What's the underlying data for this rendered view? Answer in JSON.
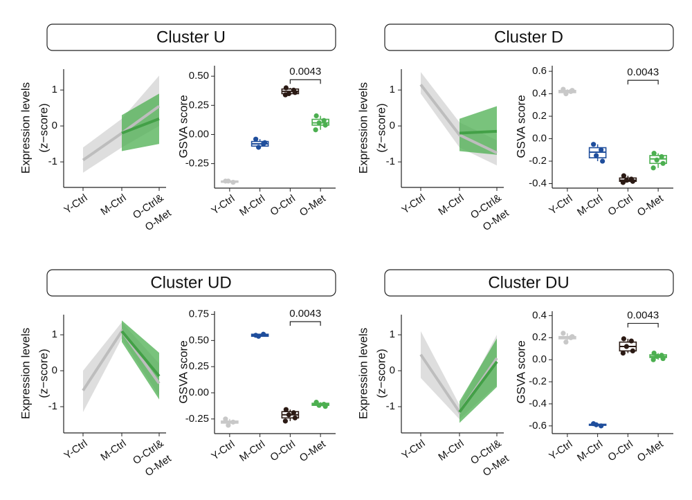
{
  "chart_data": [
    {
      "type": "line",
      "title": "Cluster U",
      "ylabel": [
        "Expression levels",
        "(z−score)"
      ],
      "categories": [
        "Y-Ctrl",
        "M-Ctrl",
        "O-Ctrl&"
      ],
      "category_suffix": "O-Met",
      "category_suffix_color": "#4caf50",
      "ylim": [
        -1.71,
        1.58
      ],
      "yticks": [
        -1,
        0,
        1
      ],
      "series": [
        {
          "color": "#c8c8c8",
          "values": [
            -0.95,
            -0.2,
            0.55
          ],
          "lower": [
            -1.3,
            -0.6,
            0.0
          ],
          "upper": [
            -0.6,
            0.2,
            1.4
          ]
        },
        {
          "color": "#4caf50",
          "values": [
            null,
            -0.2,
            0.2
          ],
          "lower": [
            null,
            -0.7,
            -0.5
          ],
          "upper": [
            null,
            0.3,
            0.9
          ]
        }
      ]
    },
    {
      "type": "box",
      "ylabel": "GSVA score",
      "categories": [
        "Y-Ctrl",
        "M-Ctrl",
        "O-Ctrl",
        "O-Met"
      ],
      "colors": [
        "#c8c8c8",
        "#1f4e9c",
        "#2b1a14",
        "#4caf50"
      ],
      "ylim": [
        -0.46,
        0.59
      ],
      "yticks": [
        -0.25,
        {
          "value": 0,
          "label": "0.00"
        },
        0.25,
        {
          "value": 0.5,
          "label": "0.50"
        }
      ],
      "annotation": {
        "text": "0.0043",
        "y": 0.47
      },
      "boxes": [
        {
          "min": -0.41,
          "q1": -0.41,
          "median": -0.4,
          "q3": -0.4,
          "max": -0.39,
          "points": [
            -0.4,
            -0.41,
            -0.4
          ]
        },
        {
          "min": -0.11,
          "q1": -0.1,
          "median": -0.08,
          "q3": -0.06,
          "max": -0.04,
          "points": [
            -0.04,
            -0.08,
            -0.11,
            -0.07
          ]
        },
        {
          "min": 0.34,
          "q1": 0.35,
          "median": 0.37,
          "q3": 0.39,
          "max": 0.4,
          "points": [
            0.4,
            0.38,
            0.35,
            0.36,
            0.34
          ]
        },
        {
          "min": 0.04,
          "q1": 0.08,
          "median": 0.1,
          "q3": 0.13,
          "max": 0.16,
          "points": [
            0.16,
            0.12,
            0.1,
            0.08,
            0.04
          ]
        }
      ]
    },
    {
      "type": "line",
      "title": "Cluster D",
      "ylabel": [
        "Expression levels",
        "(z−score)"
      ],
      "categories": [
        "Y-Ctrl",
        "M-Ctrl",
        "O-Ctrl&"
      ],
      "category_suffix": "O-Met",
      "category_suffix_color": "#4caf50",
      "ylim": [
        -1.71,
        1.58
      ],
      "yticks": [
        -1,
        0,
        1
      ],
      "series": [
        {
          "color": "#c8c8c8",
          "values": [
            1.15,
            -0.25,
            -0.75
          ],
          "lower": [
            0.9,
            -0.6,
            -1.1
          ],
          "upper": [
            1.5,
            0.1,
            -0.4
          ]
        },
        {
          "color": "#4caf50",
          "values": [
            null,
            -0.2,
            -0.15
          ],
          "lower": [
            null,
            -0.7,
            -0.8
          ],
          "upper": [
            null,
            0.2,
            0.55
          ]
        }
      ]
    },
    {
      "type": "box",
      "ylabel": "GSVA score",
      "categories": [
        "Y-Ctrl",
        "M-Ctrl",
        "O-Ctrl",
        "O-Met"
      ],
      "colors": [
        "#c8c8c8",
        "#1f4e9c",
        "#2b1a14",
        "#4caf50"
      ],
      "ylim": [
        -0.44,
        0.65
      ],
      "yticks": [
        -0.4,
        -0.2,
        {
          "value": 0,
          "label": "0.0"
        },
        0.2,
        0.4,
        0.6
      ],
      "annotation": {
        "text": "0.0043",
        "y": 0.52
      },
      "boxes": [
        {
          "min": 0.4,
          "q1": 0.41,
          "median": 0.42,
          "q3": 0.43,
          "max": 0.44,
          "points": [
            0.44,
            0.42,
            0.4,
            0.43
          ]
        },
        {
          "min": -0.2,
          "q1": -0.17,
          "median": -0.12,
          "q3": -0.08,
          "max": -0.05,
          "points": [
            -0.05,
            -0.1,
            -0.15,
            -0.2
          ]
        },
        {
          "min": -0.39,
          "q1": -0.38,
          "median": -0.37,
          "q3": -0.35,
          "max": -0.33,
          "points": [
            -0.33,
            -0.36,
            -0.37,
            -0.38,
            -0.39
          ]
        },
        {
          "min": -0.26,
          "q1": -0.22,
          "median": -0.18,
          "q3": -0.15,
          "max": -0.13,
          "points": [
            -0.13,
            -0.16,
            -0.19,
            -0.22,
            -0.26
          ]
        }
      ]
    },
    {
      "type": "line",
      "title": "Cluster UD",
      "ylabel": [
        "Expression levels",
        "(z−score)"
      ],
      "categories": [
        "Y-Ctrl",
        "M-Ctrl",
        "O-Ctrl&"
      ],
      "category_suffix": "O-Met",
      "category_suffix_color": "#4caf50",
      "ylim": [
        -1.73,
        1.56
      ],
      "yticks": [
        -1,
        0,
        1
      ],
      "series": [
        {
          "color": "#c8c8c8",
          "values": [
            -0.55,
            1.1,
            -0.35
          ],
          "lower": [
            -1.15,
            0.9,
            -0.7
          ],
          "upper": [
            0.0,
            1.35,
            0.2
          ]
        },
        {
          "color": "#4caf50",
          "values": [
            null,
            1.1,
            -0.15
          ],
          "lower": [
            null,
            0.8,
            -0.8
          ],
          "upper": [
            null,
            1.4,
            0.5
          ]
        }
      ]
    },
    {
      "type": "box",
      "ylabel": "GSVA score",
      "categories": [
        "Y-Ctrl",
        "M-Ctrl",
        "O-Ctrl",
        "O-Met"
      ],
      "colors": [
        "#c8c8c8",
        "#1f4e9c",
        "#2b1a14",
        "#4caf50"
      ],
      "ylim": [
        -0.39,
        0.78
      ],
      "yticks": [
        -0.25,
        {
          "value": 0,
          "label": "0.00"
        },
        0.25,
        {
          "value": 0.5,
          "label": "0.50"
        },
        0.75
      ],
      "annotation": {
        "text": "0.0043",
        "y": 0.68
      },
      "boxes": [
        {
          "min": -0.31,
          "q1": -0.29,
          "median": -0.28,
          "q3": -0.27,
          "max": -0.25,
          "points": [
            -0.25,
            -0.28,
            -0.31
          ]
        },
        {
          "min": 0.54,
          "q1": 0.54,
          "median": 0.55,
          "q3": 0.56,
          "max": 0.56,
          "points": [
            0.55,
            0.56,
            0.54
          ]
        },
        {
          "min": -0.27,
          "q1": -0.24,
          "median": -0.21,
          "q3": -0.18,
          "max": -0.16,
          "points": [
            -0.16,
            -0.19,
            -0.21,
            -0.24,
            -0.27
          ]
        },
        {
          "min": -0.13,
          "q1": -0.12,
          "median": -0.11,
          "q3": -0.1,
          "max": -0.09,
          "points": [
            -0.09,
            -0.11,
            -0.12,
            -0.13
          ]
        }
      ]
    },
    {
      "type": "line",
      "title": "Cluster DU",
      "ylabel": [
        "Expression levels",
        "(z−score)"
      ],
      "categories": [
        "Y-Ctrl",
        "M-Ctrl",
        "O-Ctrl&"
      ],
      "category_suffix": "O-Met",
      "category_suffix_color": "#4caf50",
      "ylim": [
        -1.73,
        1.56
      ],
      "yticks": [
        -1,
        0,
        1
      ],
      "series": [
        {
          "color": "#c8c8c8",
          "values": [
            0.45,
            -1.15,
            0.35
          ],
          "lower": [
            -0.2,
            -1.35,
            -0.4
          ],
          "upper": [
            1.1,
            -0.95,
            1.0
          ]
        },
        {
          "color": "#4caf50",
          "values": [
            null,
            -1.15,
            0.25
          ],
          "lower": [
            null,
            -1.45,
            -0.45
          ],
          "upper": [
            null,
            -0.85,
            0.9
          ]
        }
      ]
    },
    {
      "type": "box",
      "ylabel": "GSVA score",
      "categories": [
        "Y-Ctrl",
        "M-Ctrl",
        "O-Ctrl",
        "O-Met"
      ],
      "colors": [
        "#c8c8c8",
        "#1f4e9c",
        "#2b1a14",
        "#4caf50"
      ],
      "ylim": [
        -0.67,
        0.44
      ],
      "yticks": [
        -0.6,
        -0.4,
        -0.2,
        {
          "value": 0,
          "label": "0.0"
        },
        0.2,
        0.4
      ],
      "annotation": {
        "text": "0.0043",
        "y": 0.33
      },
      "boxes": [
        {
          "min": 0.16,
          "q1": 0.19,
          "median": 0.2,
          "q3": 0.21,
          "max": 0.24,
          "points": [
            0.24,
            0.2,
            0.16,
            0.21
          ]
        },
        {
          "min": -0.6,
          "q1": -0.595,
          "median": -0.59,
          "q3": -0.585,
          "max": -0.58,
          "points": [
            -0.58,
            -0.6,
            -0.59
          ]
        },
        {
          "min": 0.06,
          "q1": 0.08,
          "median": 0.12,
          "q3": 0.16,
          "max": 0.19,
          "points": [
            0.19,
            0.17,
            0.12,
            0.08,
            0.06
          ]
        },
        {
          "min": 0.0,
          "q1": 0.02,
          "median": 0.03,
          "q3": 0.045,
          "max": 0.06,
          "points": [
            0.06,
            0.04,
            0.03,
            0.01,
            0.0
          ]
        }
      ]
    }
  ]
}
